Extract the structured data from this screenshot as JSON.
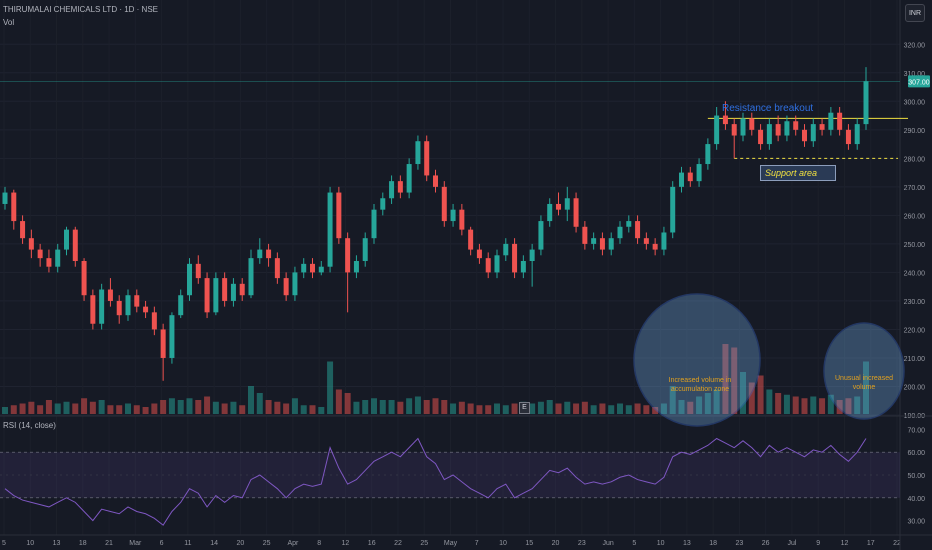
{
  "header": {
    "title": "THIRUMALAI CHEMICALS LTD · 1D · NSE",
    "vol_label": "Vol",
    "currency": "INR"
  },
  "rsi": {
    "label": "RSI (14, close)"
  },
  "annotations": {
    "resistance": "Resistance breakout",
    "support": "Support area",
    "volume1": "Increased volume in accumulation zone",
    "volume2": "Unusual increased volume",
    "earnings_marker": "E"
  },
  "colors": {
    "up": "#26a69a",
    "down": "#ef5350",
    "background": "#161a25",
    "rsi_line": "#7e57c2",
    "price_label": "#26a69a"
  },
  "chart_data": {
    "type": "candlestick",
    "price_axis": {
      "ticks": [
        190,
        200,
        210,
        220,
        230,
        240,
        250,
        260,
        270,
        280,
        290,
        300,
        310,
        320
      ],
      "last_price": "307.00"
    },
    "rsi_axis": {
      "ticks": [
        30,
        40,
        50,
        60,
        70
      ],
      "bands": [
        40,
        60
      ]
    },
    "x_tick_labels": [
      "5",
      "10",
      "13",
      "18",
      "21",
      "Mar",
      "6",
      "11",
      "14",
      "20",
      "25",
      "Apr",
      "8",
      "12",
      "16",
      "22",
      "25",
      "May",
      "7",
      "10",
      "15",
      "20",
      "23",
      "Jun",
      "5",
      "10",
      "13",
      "18",
      "23",
      "26",
      "Jul",
      "9",
      "12",
      "17",
      "22"
    ],
    "resistance_level": 294,
    "support_level": 280,
    "candles": [
      {
        "o": 264,
        "c": 268,
        "h": 270,
        "l": 262,
        "v": 4
      },
      {
        "o": 268,
        "c": 258,
        "h": 269,
        "l": 255,
        "v": 5
      },
      {
        "o": 258,
        "c": 252,
        "h": 260,
        "l": 250,
        "v": 6
      },
      {
        "o": 252,
        "c": 248,
        "h": 255,
        "l": 245,
        "v": 7
      },
      {
        "o": 248,
        "c": 245,
        "h": 250,
        "l": 242,
        "v": 5
      },
      {
        "o": 245,
        "c": 242,
        "h": 248,
        "l": 240,
        "v": 8
      },
      {
        "o": 242,
        "c": 248,
        "h": 250,
        "l": 240,
        "v": 6
      },
      {
        "o": 248,
        "c": 255,
        "h": 256,
        "l": 246,
        "v": 7
      },
      {
        "o": 255,
        "c": 244,
        "h": 256,
        "l": 242,
        "v": 6
      },
      {
        "o": 244,
        "c": 232,
        "h": 245,
        "l": 230,
        "v": 9
      },
      {
        "o": 232,
        "c": 222,
        "h": 234,
        "l": 220,
        "v": 7
      },
      {
        "o": 222,
        "c": 234,
        "h": 236,
        "l": 220,
        "v": 8
      },
      {
        "o": 234,
        "c": 230,
        "h": 238,
        "l": 228,
        "v": 5
      },
      {
        "o": 230,
        "c": 225,
        "h": 232,
        "l": 222,
        "v": 5
      },
      {
        "o": 225,
        "c": 232,
        "h": 234,
        "l": 223,
        "v": 6
      },
      {
        "o": 232,
        "c": 228,
        "h": 234,
        "l": 226,
        "v": 5
      },
      {
        "o": 228,
        "c": 226,
        "h": 230,
        "l": 224,
        "v": 4
      },
      {
        "o": 226,
        "c": 220,
        "h": 228,
        "l": 218,
        "v": 6
      },
      {
        "o": 220,
        "c": 210,
        "h": 222,
        "l": 202,
        "v": 8
      },
      {
        "o": 210,
        "c": 225,
        "h": 226,
        "l": 208,
        "v": 9
      },
      {
        "o": 225,
        "c": 232,
        "h": 234,
        "l": 224,
        "v": 8
      },
      {
        "o": 232,
        "c": 243,
        "h": 245,
        "l": 230,
        "v": 9
      },
      {
        "o": 243,
        "c": 238,
        "h": 246,
        "l": 236,
        "v": 8
      },
      {
        "o": 238,
        "c": 226,
        "h": 240,
        "l": 224,
        "v": 10
      },
      {
        "o": 226,
        "c": 238,
        "h": 240,
        "l": 225,
        "v": 7
      },
      {
        "o": 238,
        "c": 230,
        "h": 240,
        "l": 228,
        "v": 6
      },
      {
        "o": 230,
        "c": 236,
        "h": 238,
        "l": 228,
        "v": 7
      },
      {
        "o": 236,
        "c": 232,
        "h": 238,
        "l": 230,
        "v": 5
      },
      {
        "o": 232,
        "c": 245,
        "h": 248,
        "l": 231,
        "v": 16
      },
      {
        "o": 245,
        "c": 248,
        "h": 252,
        "l": 243,
        "v": 12
      },
      {
        "o": 248,
        "c": 245,
        "h": 250,
        "l": 242,
        "v": 8
      },
      {
        "o": 245,
        "c": 238,
        "h": 247,
        "l": 236,
        "v": 7
      },
      {
        "o": 238,
        "c": 232,
        "h": 240,
        "l": 230,
        "v": 6
      },
      {
        "o": 232,
        "c": 240,
        "h": 242,
        "l": 230,
        "v": 9
      },
      {
        "o": 240,
        "c": 243,
        "h": 245,
        "l": 238,
        "v": 5
      },
      {
        "o": 243,
        "c": 240,
        "h": 245,
        "l": 238,
        "v": 5
      },
      {
        "o": 240,
        "c": 242,
        "h": 244,
        "l": 239,
        "v": 4
      },
      {
        "o": 242,
        "c": 268,
        "h": 270,
        "l": 240,
        "v": 30
      },
      {
        "o": 268,
        "c": 252,
        "h": 270,
        "l": 250,
        "v": 14
      },
      {
        "o": 252,
        "c": 240,
        "h": 254,
        "l": 226,
        "v": 12
      },
      {
        "o": 240,
        "c": 244,
        "h": 246,
        "l": 238,
        "v": 7
      },
      {
        "o": 244,
        "c": 252,
        "h": 254,
        "l": 242,
        "v": 8
      },
      {
        "o": 252,
        "c": 262,
        "h": 264,
        "l": 250,
        "v": 9
      },
      {
        "o": 262,
        "c": 266,
        "h": 268,
        "l": 260,
        "v": 8
      },
      {
        "o": 266,
        "c": 272,
        "h": 274,
        "l": 264,
        "v": 8
      },
      {
        "o": 272,
        "c": 268,
        "h": 274,
        "l": 266,
        "v": 7
      },
      {
        "o": 268,
        "c": 278,
        "h": 280,
        "l": 266,
        "v": 9
      },
      {
        "o": 278,
        "c": 286,
        "h": 288,
        "l": 276,
        "v": 10
      },
      {
        "o": 286,
        "c": 274,
        "h": 288,
        "l": 272,
        "v": 8
      },
      {
        "o": 274,
        "c": 270,
        "h": 276,
        "l": 268,
        "v": 9
      },
      {
        "o": 270,
        "c": 258,
        "h": 272,
        "l": 256,
        "v": 8
      },
      {
        "o": 258,
        "c": 262,
        "h": 264,
        "l": 256,
        "v": 6
      },
      {
        "o": 262,
        "c": 255,
        "h": 264,
        "l": 253,
        "v": 7
      },
      {
        "o": 255,
        "c": 248,
        "h": 256,
        "l": 246,
        "v": 6
      },
      {
        "o": 248,
        "c": 245,
        "h": 250,
        "l": 243,
        "v": 5
      },
      {
        "o": 245,
        "c": 240,
        "h": 247,
        "l": 238,
        "v": 5
      },
      {
        "o": 240,
        "c": 246,
        "h": 248,
        "l": 238,
        "v": 6
      },
      {
        "o": 246,
        "c": 250,
        "h": 252,
        "l": 244,
        "v": 5
      },
      {
        "o": 250,
        "c": 240,
        "h": 252,
        "l": 238,
        "v": 6
      },
      {
        "o": 240,
        "c": 244,
        "h": 246,
        "l": 238,
        "v": 7
      },
      {
        "o": 244,
        "c": 248,
        "h": 250,
        "l": 235,
        "v": 6
      },
      {
        "o": 248,
        "c": 258,
        "h": 260,
        "l": 246,
        "v": 7
      },
      {
        "o": 258,
        "c": 264,
        "h": 266,
        "l": 256,
        "v": 8
      },
      {
        "o": 264,
        "c": 262,
        "h": 268,
        "l": 260,
        "v": 6
      },
      {
        "o": 262,
        "c": 266,
        "h": 270,
        "l": 258,
        "v": 7
      },
      {
        "o": 266,
        "c": 256,
        "h": 268,
        "l": 254,
        "v": 6
      },
      {
        "o": 256,
        "c": 250,
        "h": 258,
        "l": 248,
        "v": 7
      },
      {
        "o": 250,
        "c": 252,
        "h": 254,
        "l": 248,
        "v": 5
      },
      {
        "o": 252,
        "c": 248,
        "h": 254,
        "l": 246,
        "v": 6
      },
      {
        "o": 248,
        "c": 252,
        "h": 254,
        "l": 246,
        "v": 5
      },
      {
        "o": 252,
        "c": 256,
        "h": 258,
        "l": 250,
        "v": 6
      },
      {
        "o": 256,
        "c": 258,
        "h": 260,
        "l": 254,
        "v": 5
      },
      {
        "o": 258,
        "c": 252,
        "h": 260,
        "l": 250,
        "v": 6
      },
      {
        "o": 252,
        "c": 250,
        "h": 254,
        "l": 248,
        "v": 5
      },
      {
        "o": 250,
        "c": 248,
        "h": 252,
        "l": 246,
        "v": 4
      },
      {
        "o": 248,
        "c": 254,
        "h": 256,
        "l": 246,
        "v": 6
      },
      {
        "o": 254,
        "c": 270,
        "h": 272,
        "l": 252,
        "v": 16
      },
      {
        "o": 270,
        "c": 275,
        "h": 277,
        "l": 268,
        "v": 8
      },
      {
        "o": 275,
        "c": 272,
        "h": 277,
        "l": 270,
        "v": 7
      },
      {
        "o": 272,
        "c": 278,
        "h": 280,
        "l": 270,
        "v": 10
      },
      {
        "o": 278,
        "c": 285,
        "h": 287,
        "l": 276,
        "v": 12
      },
      {
        "o": 285,
        "c": 295,
        "h": 298,
        "l": 283,
        "v": 14
      },
      {
        "o": 295,
        "c": 292,
        "h": 300,
        "l": 290,
        "v": 40
      },
      {
        "o": 292,
        "c": 288,
        "h": 294,
        "l": 280,
        "v": 38
      },
      {
        "o": 288,
        "c": 294,
        "h": 296,
        "l": 286,
        "v": 24
      },
      {
        "o": 294,
        "c": 290,
        "h": 296,
        "l": 288,
        "v": 18
      },
      {
        "o": 290,
        "c": 285,
        "h": 292,
        "l": 283,
        "v": 22
      },
      {
        "o": 285,
        "c": 292,
        "h": 294,
        "l": 283,
        "v": 14
      },
      {
        "o": 292,
        "c": 288,
        "h": 295,
        "l": 286,
        "v": 12
      },
      {
        "o": 288,
        "c": 293,
        "h": 295,
        "l": 286,
        "v": 11
      },
      {
        "o": 293,
        "c": 290,
        "h": 295,
        "l": 288,
        "v": 10
      },
      {
        "o": 290,
        "c": 286,
        "h": 292,
        "l": 284,
        "v": 9
      },
      {
        "o": 286,
        "c": 292,
        "h": 294,
        "l": 284,
        "v": 10
      },
      {
        "o": 292,
        "c": 290,
        "h": 294,
        "l": 288,
        "v": 9
      },
      {
        "o": 290,
        "c": 296,
        "h": 298,
        "l": 288,
        "v": 11
      },
      {
        "o": 296,
        "c": 290,
        "h": 298,
        "l": 288,
        "v": 8
      },
      {
        "o": 290,
        "c": 285,
        "h": 292,
        "l": 283,
        "v": 9
      },
      {
        "o": 285,
        "c": 292,
        "h": 294,
        "l": 283,
        "v": 10
      },
      {
        "o": 292,
        "c": 307,
        "h": 312,
        "l": 290,
        "v": 30
      }
    ],
    "rsi": [
      44,
      41,
      39,
      38,
      37,
      36,
      38,
      40,
      38,
      34,
      30,
      35,
      34,
      33,
      36,
      34,
      33,
      31,
      28,
      34,
      38,
      44,
      42,
      36,
      41,
      38,
      41,
      40,
      48,
      50,
      47,
      44,
      40,
      44,
      46,
      45,
      46,
      62,
      53,
      46,
      48,
      52,
      56,
      58,
      60,
      58,
      62,
      66,
      58,
      55,
      48,
      50,
      47,
      44,
      42,
      40,
      44,
      46,
      40,
      42,
      44,
      48,
      52,
      51,
      53,
      49,
      46,
      47,
      46,
      47,
      49,
      50,
      48,
      47,
      46,
      49,
      58,
      60,
      59,
      61,
      63,
      66,
      64,
      62,
      65,
      62,
      58,
      63,
      60,
      62,
      60,
      58,
      61,
      60,
      63,
      59,
      56,
      60,
      66
    ]
  }
}
